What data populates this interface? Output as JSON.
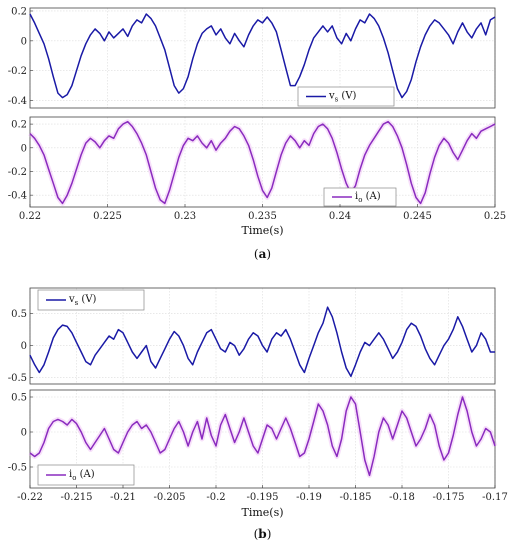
{
  "chart_data": [
    {
      "type": "line",
      "panel": "a",
      "xlabel": "Time(s)",
      "xlim": [
        0.22,
        0.25
      ],
      "xticks": [
        "0.22",
        "0.225",
        "0.23",
        "0.235",
        "0.24",
        "0.245",
        "0.25"
      ],
      "subplots": [
        {
          "ylim": [
            -0.45,
            0.22
          ],
          "yticks": [
            "-0.4",
            "-0.2",
            "0",
            "0.2"
          ],
          "legend": {
            "main": "v",
            "sub": "s",
            "unit": " (V)"
          },
          "color": "#1a1aa6",
          "series": {
            "name": "vs (V)",
            "x": [
              0.22,
              0.2203,
              0.2206,
              0.2209,
              0.2212,
              0.2215,
              0.2218,
              0.2221,
              0.2224,
              0.2227,
              0.223,
              0.2233,
              0.2236,
              0.2239,
              0.2242,
              0.2245,
              0.2248,
              0.2251,
              0.2254,
              0.2257,
              0.226,
              0.2263,
              0.2266,
              0.2269,
              0.2272,
              0.2275,
              0.2278,
              0.2281,
              0.2284,
              0.2287,
              0.229,
              0.2293,
              0.2296,
              0.2299,
              0.2302,
              0.2305,
              0.2308,
              0.2311,
              0.2314,
              0.2317,
              0.232,
              0.2323,
              0.2326,
              0.2329,
              0.2332,
              0.2335,
              0.2338,
              0.2341,
              0.2344,
              0.2347,
              0.235,
              0.2353,
              0.2356,
              0.2359,
              0.2362,
              0.2365,
              0.2368,
              0.2371,
              0.2374,
              0.2377,
              0.238,
              0.2383,
              0.2386,
              0.2389,
              0.2392,
              0.2395,
              0.2398,
              0.2401,
              0.2404,
              0.2407,
              0.241,
              0.2413,
              0.2416,
              0.2419,
              0.2422,
              0.2425,
              0.2428,
              0.2431,
              0.2434,
              0.2437,
              0.244,
              0.2443,
              0.2446,
              0.2449,
              0.2452,
              0.2455,
              0.2458,
              0.2461,
              0.2464,
              0.2467,
              0.247,
              0.2473,
              0.2476,
              0.2479,
              0.2482,
              0.2485,
              0.2488,
              0.2491,
              0.2494,
              0.2497,
              0.25
            ],
            "values": [
              0.18,
              0.12,
              0.05,
              -0.02,
              -0.12,
              -0.24,
              -0.35,
              -0.38,
              -0.36,
              -0.3,
              -0.2,
              -0.1,
              -0.02,
              0.04,
              0.08,
              0.05,
              0.0,
              0.06,
              0.02,
              0.05,
              0.08,
              0.03,
              0.1,
              0.14,
              0.12,
              0.18,
              0.15,
              0.1,
              0.02,
              -0.06,
              -0.18,
              -0.3,
              -0.35,
              -0.32,
              -0.24,
              -0.12,
              -0.02,
              0.05,
              0.08,
              0.1,
              0.04,
              0.08,
              0.02,
              -0.02,
              0.05,
              0.0,
              -0.04,
              0.04,
              0.1,
              0.14,
              0.12,
              0.16,
              0.12,
              0.06,
              -0.06,
              -0.18,
              -0.3,
              -0.3,
              -0.24,
              -0.16,
              -0.06,
              0.02,
              0.06,
              0.1,
              0.06,
              0.1,
              0.02,
              -0.02,
              0.05,
              0.0,
              0.08,
              0.14,
              0.12,
              0.18,
              0.15,
              0.1,
              0.02,
              -0.08,
              -0.2,
              -0.32,
              -0.38,
              -0.34,
              -0.26,
              -0.14,
              -0.04,
              0.04,
              0.1,
              0.14,
              0.12,
              0.08,
              0.04,
              -0.02,
              0.06,
              0.12,
              0.06,
              0.02,
              0.08,
              0.12,
              0.04,
              0.14,
              0.16
            ]
          }
        },
        {
          "ylim": [
            -0.5,
            0.26
          ],
          "yticks": [
            "-0.4",
            "-0.2",
            "0",
            "0.2"
          ],
          "legend": {
            "main": "i",
            "sub": "o",
            "unit": " (A)"
          },
          "color": "#8a2bbf",
          "series": {
            "name": "io (A)",
            "x": [
              0.22,
              0.2203,
              0.2206,
              0.2209,
              0.2212,
              0.2215,
              0.2218,
              0.2221,
              0.2224,
              0.2227,
              0.223,
              0.2233,
              0.2236,
              0.2239,
              0.2242,
              0.2245,
              0.2248,
              0.2251,
              0.2254,
              0.2257,
              0.226,
              0.2263,
              0.2266,
              0.2269,
              0.2272,
              0.2275,
              0.2278,
              0.2281,
              0.2284,
              0.2287,
              0.229,
              0.2293,
              0.2296,
              0.2299,
              0.2302,
              0.2305,
              0.2308,
              0.2311,
              0.2314,
              0.2317,
              0.232,
              0.2323,
              0.2326,
              0.2329,
              0.2332,
              0.2335,
              0.2338,
              0.2341,
              0.2344,
              0.2347,
              0.235,
              0.2353,
              0.2356,
              0.2359,
              0.2362,
              0.2365,
              0.2368,
              0.2371,
              0.2374,
              0.2377,
              0.238,
              0.2383,
              0.2386,
              0.2389,
              0.2392,
              0.2395,
              0.2398,
              0.2401,
              0.2404,
              0.2407,
              0.241,
              0.2413,
              0.2416,
              0.2419,
              0.2422,
              0.2425,
              0.2428,
              0.2431,
              0.2434,
              0.2437,
              0.244,
              0.2443,
              0.2446,
              0.2449,
              0.2452,
              0.2455,
              0.2458,
              0.2461,
              0.2464,
              0.2467,
              0.247,
              0.2473,
              0.2476,
              0.2479,
              0.2482,
              0.2485,
              0.2488,
              0.2491,
              0.2494,
              0.2497,
              0.25
            ],
            "values": [
              0.12,
              0.08,
              0.02,
              -0.06,
              -0.18,
              -0.3,
              -0.42,
              -0.47,
              -0.4,
              -0.3,
              -0.18,
              -0.06,
              0.04,
              0.08,
              0.05,
              0.0,
              0.06,
              0.1,
              0.08,
              0.16,
              0.2,
              0.22,
              0.18,
              0.12,
              0.04,
              -0.06,
              -0.2,
              -0.34,
              -0.44,
              -0.47,
              -0.36,
              -0.22,
              -0.08,
              0.02,
              0.08,
              0.06,
              0.1,
              0.04,
              0.0,
              0.06,
              -0.02,
              0.04,
              0.08,
              0.14,
              0.18,
              0.16,
              0.1,
              0.02,
              -0.1,
              -0.24,
              -0.36,
              -0.42,
              -0.34,
              -0.2,
              -0.06,
              0.04,
              0.1,
              0.06,
              0.0,
              0.06,
              0.02,
              0.12,
              0.18,
              0.2,
              0.16,
              0.08,
              -0.04,
              -0.18,
              -0.3,
              -0.38,
              -0.32,
              -0.18,
              -0.06,
              0.02,
              0.08,
              0.14,
              0.2,
              0.22,
              0.18,
              0.1,
              0.0,
              -0.14,
              -0.3,
              -0.42,
              -0.47,
              -0.38,
              -0.22,
              -0.08,
              0.02,
              0.08,
              0.04,
              -0.04,
              -0.1,
              -0.02,
              0.06,
              0.12,
              0.08,
              0.14,
              0.16,
              0.18,
              0.2
            ]
          }
        }
      ]
    },
    {
      "type": "line",
      "panel": "b",
      "xlabel": "Time(s)",
      "xlim": [
        -0.22,
        -0.17
      ],
      "xticks": [
        "-0.22",
        "-0.215",
        "-0.21",
        "-0.205",
        "-0.2",
        "-0.195",
        "-0.19",
        "-0.185",
        "-0.18",
        "-0.175",
        "-0.17"
      ],
      "subplots": [
        {
          "ylim": [
            -0.6,
            0.9
          ],
          "yticks": [
            "-0.5",
            "0",
            "0.5"
          ],
          "legend": {
            "main": "v",
            "sub": "s",
            "unit": " (V)"
          },
          "color": "#1a1aa6",
          "series": {
            "name": "vs (V)",
            "x": [
              -0.22,
              -0.2195,
              -0.219,
              -0.2185,
              -0.218,
              -0.2175,
              -0.217,
              -0.2165,
              -0.216,
              -0.2155,
              -0.215,
              -0.2145,
              -0.214,
              -0.2135,
              -0.213,
              -0.2125,
              -0.212,
              -0.2115,
              -0.211,
              -0.2105,
              -0.21,
              -0.2095,
              -0.209,
              -0.2085,
              -0.208,
              -0.2075,
              -0.207,
              -0.2065,
              -0.206,
              -0.2055,
              -0.205,
              -0.2045,
              -0.204,
              -0.2035,
              -0.203,
              -0.2025,
              -0.202,
              -0.2015,
              -0.201,
              -0.2005,
              -0.2,
              -0.1995,
              -0.199,
              -0.1985,
              -0.198,
              -0.1975,
              -0.197,
              -0.1965,
              -0.196,
              -0.1955,
              -0.195,
              -0.1945,
              -0.194,
              -0.1935,
              -0.193,
              -0.1925,
              -0.192,
              -0.1915,
              -0.191,
              -0.1905,
              -0.19,
              -0.1895,
              -0.189,
              -0.1885,
              -0.188,
              -0.1875,
              -0.187,
              -0.1865,
              -0.186,
              -0.1855,
              -0.185,
              -0.1845,
              -0.184,
              -0.1835,
              -0.183,
              -0.1825,
              -0.182,
              -0.1815,
              -0.181,
              -0.1805,
              -0.18,
              -0.1795,
              -0.179,
              -0.1785,
              -0.178,
              -0.1775,
              -0.177,
              -0.1765,
              -0.176,
              -0.1755,
              -0.175,
              -0.1745,
              -0.174,
              -0.1735,
              -0.173,
              -0.1725,
              -0.172,
              -0.1715,
              -0.171,
              -0.1705,
              -0.17
            ],
            "values": [
              -0.15,
              -0.3,
              -0.42,
              -0.3,
              -0.1,
              0.12,
              0.25,
              0.32,
              0.3,
              0.2,
              0.05,
              -0.1,
              -0.25,
              -0.3,
              -0.15,
              -0.05,
              0.05,
              0.15,
              0.1,
              0.25,
              0.2,
              0.05,
              -0.1,
              -0.2,
              -0.1,
              0.0,
              -0.25,
              -0.35,
              -0.2,
              -0.05,
              0.1,
              0.22,
              0.15,
              0.0,
              -0.2,
              -0.3,
              -0.1,
              0.05,
              0.2,
              0.25,
              0.1,
              -0.05,
              -0.1,
              0.05,
              0.0,
              -0.15,
              -0.05,
              0.1,
              0.2,
              0.15,
              0.0,
              -0.1,
              0.1,
              0.2,
              0.15,
              0.25,
              0.1,
              -0.1,
              -0.3,
              -0.42,
              -0.2,
              0.0,
              0.2,
              0.35,
              0.6,
              0.45,
              0.2,
              -0.1,
              -0.35,
              -0.48,
              -0.3,
              -0.1,
              0.05,
              0.0,
              0.1,
              0.2,
              0.1,
              -0.05,
              -0.2,
              -0.1,
              0.05,
              0.25,
              0.35,
              0.3,
              0.15,
              -0.05,
              -0.2,
              -0.3,
              -0.15,
              0.0,
              0.1,
              0.25,
              0.45,
              0.3,
              0.1,
              -0.1,
              0.0,
              0.2,
              0.1,
              -0.1,
              -0.1
            ]
          }
        },
        {
          "ylim": [
            -0.8,
            0.6
          ],
          "yticks": [
            "-0.5",
            "0",
            "0.5"
          ],
          "legend": {
            "main": "i",
            "sub": "o",
            "unit": " (A)"
          },
          "color": "#8a2bbf",
          "series": {
            "name": "io (A)",
            "x": [
              -0.22,
              -0.2195,
              -0.219,
              -0.2185,
              -0.218,
              -0.2175,
              -0.217,
              -0.2165,
              -0.216,
              -0.2155,
              -0.215,
              -0.2145,
              -0.214,
              -0.2135,
              -0.213,
              -0.2125,
              -0.212,
              -0.2115,
              -0.211,
              -0.2105,
              -0.21,
              -0.2095,
              -0.209,
              -0.2085,
              -0.208,
              -0.2075,
              -0.207,
              -0.2065,
              -0.206,
              -0.2055,
              -0.205,
              -0.2045,
              -0.204,
              -0.2035,
              -0.203,
              -0.2025,
              -0.202,
              -0.2015,
              -0.201,
              -0.2005,
              -0.2,
              -0.1995,
              -0.199,
              -0.1985,
              -0.198,
              -0.1975,
              -0.197,
              -0.1965,
              -0.196,
              -0.1955,
              -0.195,
              -0.1945,
              -0.194,
              -0.1935,
              -0.193,
              -0.1925,
              -0.192,
              -0.1915,
              -0.191,
              -0.1905,
              -0.19,
              -0.1895,
              -0.189,
              -0.1885,
              -0.188,
              -0.1875,
              -0.187,
              -0.1865,
              -0.186,
              -0.1855,
              -0.185,
              -0.1845,
              -0.184,
              -0.1835,
              -0.183,
              -0.1825,
              -0.182,
              -0.1815,
              -0.181,
              -0.1805,
              -0.18,
              -0.1795,
              -0.179,
              -0.1785,
              -0.178,
              -0.1775,
              -0.177,
              -0.1765,
              -0.176,
              -0.1755,
              -0.175,
              -0.1745,
              -0.174,
              -0.1735,
              -0.173,
              -0.1725,
              -0.172,
              -0.1715,
              -0.171,
              -0.1705,
              -0.17
            ],
            "values": [
              -0.3,
              -0.35,
              -0.3,
              -0.15,
              0.05,
              0.15,
              0.18,
              0.15,
              0.1,
              0.18,
              0.12,
              0.0,
              -0.15,
              -0.25,
              -0.15,
              -0.05,
              0.05,
              -0.1,
              -0.25,
              -0.3,
              -0.15,
              0.0,
              0.1,
              0.15,
              0.05,
              0.1,
              0.0,
              -0.15,
              -0.3,
              -0.25,
              -0.1,
              0.05,
              0.15,
              0.0,
              -0.2,
              0.0,
              0.15,
              -0.1,
              0.2,
              -0.05,
              -0.2,
              0.1,
              0.25,
              0.05,
              -0.15,
              0.0,
              0.2,
              0.0,
              -0.2,
              -0.3,
              -0.1,
              0.1,
              0.05,
              -0.1,
              0.05,
              0.2,
              0.05,
              -0.15,
              -0.35,
              -0.3,
              -0.1,
              0.15,
              0.4,
              0.3,
              0.1,
              -0.2,
              -0.35,
              -0.1,
              0.3,
              0.5,
              0.4,
              0.0,
              -0.4,
              -0.62,
              -0.35,
              0.0,
              0.2,
              0.1,
              -0.1,
              0.1,
              0.3,
              0.2,
              0.0,
              -0.2,
              -0.1,
              0.05,
              0.25,
              0.1,
              -0.2,
              -0.4,
              -0.3,
              -0.05,
              0.25,
              0.5,
              0.3,
              0.0,
              -0.2,
              -0.1,
              0.05,
              0.0,
              -0.2
            ]
          }
        }
      ]
    }
  ],
  "panel_labels": {
    "a": "(a)",
    "a_letter": "a",
    "b": "(b)",
    "b_letter": "b"
  }
}
